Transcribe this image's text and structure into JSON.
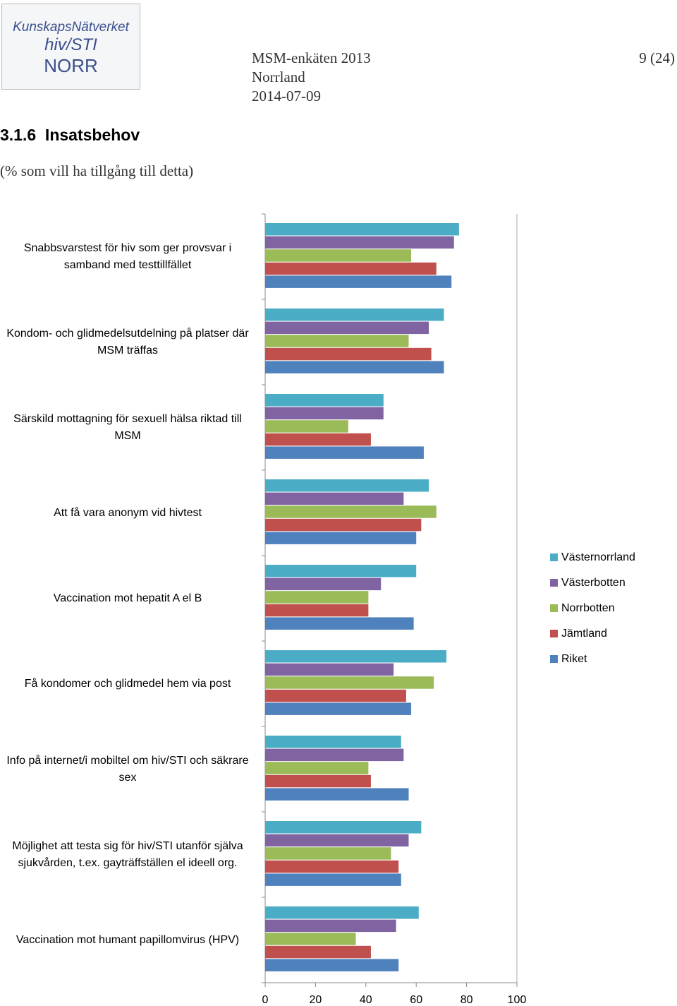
{
  "header": {
    "logo": [
      "KunskapsNätverket",
      "hiv/STI",
      "NORR"
    ],
    "doc_title": "MSM-enkäten 2013",
    "region": "Norrland",
    "date": "2014-07-09",
    "page": "9 (24)"
  },
  "section": {
    "heading": "3.1.6  Insatsbehov",
    "subtitle": "(% som vill ha tillgång till detta)"
  },
  "chart_data": {
    "type": "barh",
    "categories": [
      "Snabbsvarstest för hiv som ger provsvar i samband med testtillfället",
      "Kondom- och glidmedelsutdelning på platser där MSM träffas",
      "Särskild mottagning för sexuell hälsa riktad till MSM",
      "Att få vara anonym vid hivtest",
      "Vaccination mot hepatit A el B",
      "Få kondomer och glidmedel hem via post",
      "Info på internet/i mobiltel om hiv/STI och säkrare sex",
      "Möjlighet att testa sig för hiv/STI utanför själva sjukvården, t.ex. gayträffställen el ideell org.",
      "Vaccination mot humant papillomvirus (HPV)"
    ],
    "series": [
      {
        "name": "Västernorrland",
        "color": "#4bacc6",
        "values": [
          77,
          71,
          47,
          65,
          60,
          72,
          54,
          62,
          61
        ]
      },
      {
        "name": "Västerbotten",
        "color": "#8064a2",
        "values": [
          75,
          65,
          47,
          55,
          46,
          51,
          55,
          57,
          52
        ]
      },
      {
        "name": "Norrbotten",
        "color": "#9bbb59",
        "values": [
          58,
          57,
          33,
          68,
          41,
          67,
          41,
          50,
          36
        ]
      },
      {
        "name": "Jämtland",
        "color": "#c0504d",
        "values": [
          68,
          66,
          42,
          62,
          41,
          56,
          42,
          53,
          42
        ]
      },
      {
        "name": "Riket",
        "color": "#4f81bd",
        "values": [
          74,
          71,
          63,
          60,
          59,
          58,
          57,
          54,
          53
        ]
      }
    ],
    "xlim": [
      0,
      100
    ],
    "xticks": [
      0,
      20,
      40,
      60,
      80,
      100
    ],
    "legend": "right"
  }
}
